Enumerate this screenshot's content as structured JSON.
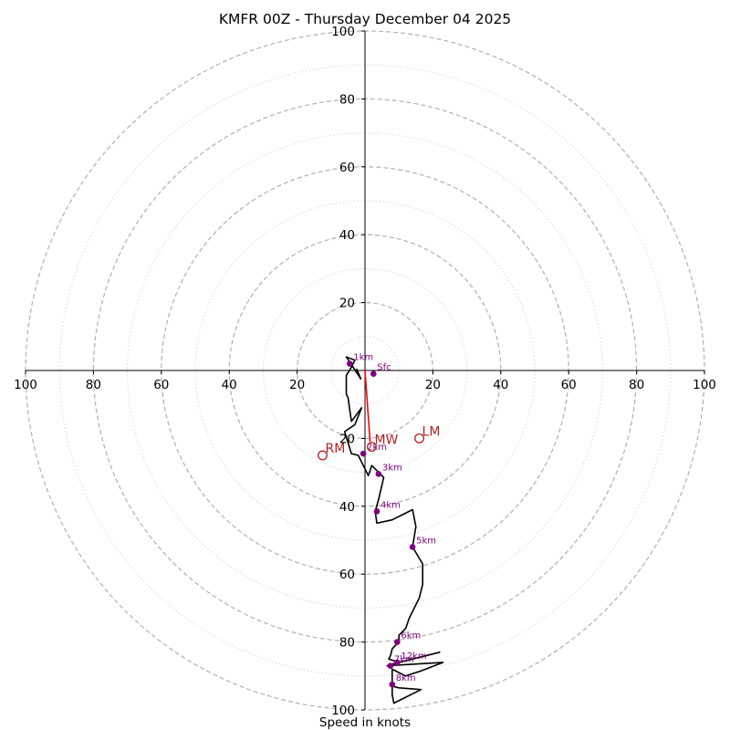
{
  "chart_data": {
    "type": "hodograph",
    "title": "KMFR 00Z - Thursday December 04 2025",
    "xlabel": "Speed in knots",
    "units": "knots",
    "range": [
      -100,
      100
    ],
    "ring_values": [
      20,
      40,
      60,
      80,
      100
    ],
    "minor_ring_values": [
      10,
      30,
      50,
      70,
      90
    ],
    "x_tick_labels": [
      "100",
      "80",
      "60",
      "40",
      "20",
      "20",
      "40",
      "60",
      "80",
      "100"
    ],
    "x_tick_values": [
      -100,
      -80,
      -60,
      -40,
      -20,
      20,
      40,
      60,
      80,
      100
    ],
    "y_tick_labels": [
      "100",
      "80",
      "60",
      "40",
      "20",
      "20",
      "40",
      "60",
      "80",
      "100"
    ],
    "y_tick_values": [
      100,
      80,
      60,
      40,
      20,
      -20,
      -40,
      -60,
      -80,
      -100
    ],
    "hodograph_trace": {
      "color": "#000000",
      "points": [
        [
          -2.5,
          0.5
        ],
        [
          -1.2,
          -2.5
        ],
        [
          -5.5,
          4.0
        ],
        [
          -3.0,
          3.0
        ],
        [
          -4.0,
          1.0
        ],
        [
          -5.5,
          -1.5
        ],
        [
          -5.5,
          -7.0
        ],
        [
          -5.0,
          -8.0
        ],
        [
          -4.0,
          -15.0
        ],
        [
          -1.0,
          -11.0
        ],
        [
          -3.0,
          -16.0
        ],
        [
          -6.0,
          -18.0
        ],
        [
          -4.0,
          -24.5
        ],
        [
          -2.0,
          -25.0
        ],
        [
          0.0,
          -29.0
        ],
        [
          1.0,
          -31.0
        ],
        [
          2.0,
          -28.0
        ],
        [
          4.0,
          -30.0
        ],
        [
          5.5,
          -31.5
        ],
        [
          4.0,
          -38.0
        ],
        [
          3.0,
          -41.5
        ],
        [
          3.5,
          -45.0
        ],
        [
          8.0,
          -44.0
        ],
        [
          11.0,
          -42.5
        ],
        [
          14.0,
          -41.0
        ],
        [
          15.0,
          -46.0
        ],
        [
          14.0,
          -52.0
        ],
        [
          17.0,
          -57.0
        ],
        [
          17.0,
          -63.0
        ],
        [
          16.0,
          -67.0
        ],
        [
          13.0,
          -73.0
        ],
        [
          12.0,
          -76.0
        ],
        [
          10.0,
          -78.0
        ],
        [
          10.0,
          -80.0
        ],
        [
          8.0,
          -82.0
        ],
        [
          7.5,
          -84.0
        ],
        [
          7.0,
          -85.0
        ],
        [
          10.0,
          -86.0
        ],
        [
          22.0,
          -83.0
        ],
        [
          8.0,
          -86.5
        ],
        [
          6.5,
          -87.0
        ],
        [
          23.0,
          -86.0
        ],
        [
          16.5,
          -88.5
        ],
        [
          12.0,
          -90.0
        ],
        [
          8.0,
          -88.0
        ],
        [
          8.0,
          -93.0
        ],
        [
          10.0,
          -93.5
        ],
        [
          16.5,
          -94.0
        ],
        [
          8.5,
          -98.0
        ],
        [
          8.0,
          -95.5
        ],
        [
          8.0,
          -93.0
        ]
      ]
    },
    "height_markers": [
      {
        "label": "Sfc",
        "u": 2.5,
        "v": -1.0
      },
      {
        "label": "1km",
        "u": -4.5,
        "v": 2.0
      },
      {
        "label": "2km",
        "u": -0.5,
        "v": -24.5
      },
      {
        "label": "3km",
        "u": 4.0,
        "v": -30.5
      },
      {
        "label": "4km",
        "u": 3.5,
        "v": -41.5
      },
      {
        "label": "5km",
        "u": 14.0,
        "v": -52.0
      },
      {
        "label": "6km",
        "u": 9.5,
        "v": -80.0
      },
      {
        "label": "7km",
        "u": 7.5,
        "v": -87.0
      },
      {
        "label": "12km",
        "u": 9.5,
        "v": -86.0
      },
      {
        "label": "8km",
        "u": 8.0,
        "v": -92.5
      }
    ],
    "mean_wind_line": {
      "color": "#ff0000",
      "from": [
        0.0,
        0.0
      ],
      "to": [
        1.5,
        -21.0
      ]
    },
    "storm_motions": [
      {
        "label": "LM",
        "u": 16.0,
        "v": -20.0
      },
      {
        "label": "RM",
        "u": -12.5,
        "v": -25.0
      },
      {
        "label": "MW",
        "u": 2.0,
        "v": -22.5
      }
    ],
    "colors": {
      "trace": "#000000",
      "markers": "#800080",
      "storm_motion": "#b22222",
      "mean_wind": "#ff0000",
      "major_rings": "#b0b0b0",
      "minor_rings": "#d0d0d0"
    }
  }
}
